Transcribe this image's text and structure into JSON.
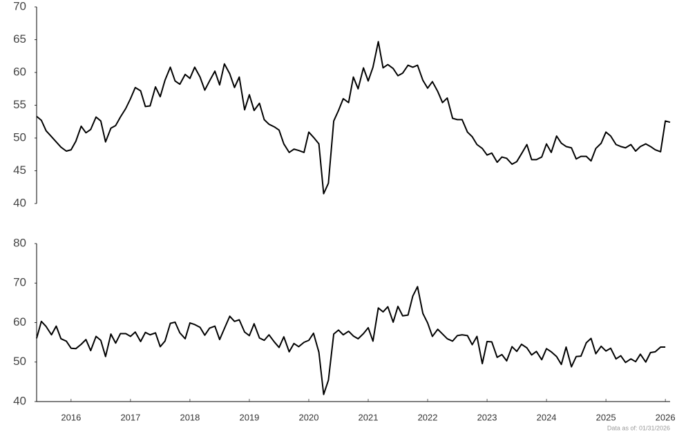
{
  "chart_data": [
    {
      "type": "line",
      "x": [
        2015.42,
        2015.5,
        2015.58,
        2015.67,
        2015.75,
        2015.83,
        2015.92,
        2016,
        2016.08,
        2016.17,
        2016.25,
        2016.33,
        2016.42,
        2016.5,
        2016.58,
        2016.67,
        2016.75,
        2016.83,
        2016.92,
        2017,
        2017.08,
        2017.17,
        2017.25,
        2017.33,
        2017.42,
        2017.5,
        2017.58,
        2017.67,
        2017.75,
        2017.83,
        2017.92,
        2018,
        2018.08,
        2018.17,
        2018.25,
        2018.33,
        2018.42,
        2018.5,
        2018.58,
        2018.67,
        2018.75,
        2018.83,
        2018.92,
        2019,
        2019.08,
        2019.17,
        2019.25,
        2019.33,
        2019.42,
        2019.5,
        2019.58,
        2019.67,
        2019.75,
        2019.83,
        2019.92,
        2020,
        2020.08,
        2020.17,
        2020.25,
        2020.33,
        2020.42,
        2020.5,
        2020.58,
        2020.67,
        2020.75,
        2020.83,
        2020.92,
        2021,
        2021.08,
        2021.17,
        2021.25,
        2021.33,
        2021.42,
        2021.5,
        2021.58,
        2021.67,
        2021.75,
        2021.83,
        2021.92,
        2022,
        2022.08,
        2022.17,
        2022.25,
        2022.33,
        2022.42,
        2022.5,
        2022.58,
        2022.67,
        2022.75,
        2022.83,
        2022.92,
        2023,
        2023.08,
        2023.17,
        2023.25,
        2023.33,
        2023.42,
        2023.5,
        2023.58,
        2023.67,
        2023.75,
        2023.83,
        2023.92,
        2024,
        2024.08,
        2024.17,
        2024.25,
        2024.33,
        2024.42,
        2024.5,
        2024.58,
        2024.67,
        2024.75,
        2024.83,
        2024.92,
        2025,
        2025.08,
        2025.17,
        2025.25,
        2025.33,
        2025.42,
        2025.5,
        2025.58,
        2025.67,
        2025.75,
        2025.83,
        2025.92,
        2026,
        2026.08
      ],
      "series": [
        {
          "color": "#000000",
          "values": [
            53.3,
            52.7,
            51.1,
            50.2,
            49.4,
            48.6,
            48.0,
            48.2,
            49.5,
            51.8,
            50.8,
            51.3,
            53.2,
            52.6,
            49.4,
            51.5,
            51.9,
            53.2,
            54.5,
            56.0,
            57.7,
            57.2,
            54.8,
            54.9,
            57.8,
            56.3,
            58.8,
            60.8,
            58.7,
            58.2,
            59.7,
            59.1,
            60.8,
            59.3,
            57.3,
            58.7,
            60.2,
            58.1,
            61.3,
            59.8,
            57.7,
            59.3,
            54.3,
            56.6,
            54.2,
            55.3,
            52.8,
            52.1,
            51.7,
            51.2,
            49.1,
            47.8,
            48.3,
            48.1,
            47.8,
            50.9,
            50.1,
            49.1,
            41.5,
            43.1,
            52.6,
            54.2,
            56.0,
            55.4,
            59.3,
            57.5,
            60.7,
            58.7,
            60.8,
            64.7,
            60.7,
            61.2,
            60.6,
            59.5,
            59.9,
            61.1,
            60.8,
            61.1,
            58.8,
            57.6,
            58.6,
            57.1,
            55.4,
            56.1,
            53.0,
            52.8,
            52.8,
            50.9,
            50.2,
            49.0,
            48.4,
            47.4,
            47.7,
            46.3,
            47.1,
            46.9,
            46.0,
            46.4,
            47.6,
            49.0,
            46.7,
            46.7,
            47.1,
            49.1,
            47.8,
            50.3,
            49.2,
            48.7,
            48.5,
            46.8,
            47.2,
            47.2,
            46.5,
            48.4,
            49.2,
            50.9,
            50.3,
            49.0,
            48.7,
            48.5,
            49.0,
            48.0,
            48.7,
            49.1,
            48.7,
            48.2,
            47.9,
            52.6,
            52.4
          ]
        }
      ],
      "xlim": [
        2015.42,
        2026.08
      ],
      "ylim": [
        40,
        70
      ],
      "yticks": [
        40,
        45,
        50,
        55,
        60,
        65,
        70
      ]
    },
    {
      "type": "line",
      "x": [
        2015.42,
        2015.5,
        2015.58,
        2015.67,
        2015.75,
        2015.83,
        2015.92,
        2016,
        2016.08,
        2016.17,
        2016.25,
        2016.33,
        2016.42,
        2016.5,
        2016.58,
        2016.67,
        2016.75,
        2016.83,
        2016.92,
        2017,
        2017.08,
        2017.17,
        2017.25,
        2017.33,
        2017.42,
        2017.5,
        2017.58,
        2017.67,
        2017.75,
        2017.83,
        2017.92,
        2018,
        2018.08,
        2018.17,
        2018.25,
        2018.33,
        2018.42,
        2018.5,
        2018.58,
        2018.67,
        2018.75,
        2018.83,
        2018.92,
        2019,
        2019.08,
        2019.17,
        2019.25,
        2019.33,
        2019.42,
        2019.5,
        2019.58,
        2019.67,
        2019.75,
        2019.83,
        2019.92,
        2020,
        2020.08,
        2020.17,
        2020.25,
        2020.33,
        2020.42,
        2020.5,
        2020.58,
        2020.67,
        2020.75,
        2020.83,
        2020.92,
        2021,
        2021.08,
        2021.17,
        2021.25,
        2021.33,
        2021.42,
        2021.5,
        2021.58,
        2021.67,
        2021.75,
        2021.83,
        2021.92,
        2022,
        2022.08,
        2022.17,
        2022.25,
        2022.33,
        2022.42,
        2022.5,
        2022.58,
        2022.67,
        2022.75,
        2022.83,
        2022.92,
        2023,
        2023.08,
        2023.17,
        2023.25,
        2023.33,
        2023.42,
        2023.5,
        2023.58,
        2023.67,
        2023.75,
        2023.83,
        2023.92,
        2024,
        2024.08,
        2024.17,
        2024.25,
        2024.33,
        2024.42,
        2024.5,
        2024.58,
        2024.67,
        2024.75,
        2024.83,
        2024.92,
        2025,
        2025.08,
        2025.17,
        2025.25,
        2025.33,
        2025.42,
        2025.5,
        2025.58,
        2025.67,
        2025.75,
        2025.83,
        2025.92,
        2026,
        2026.08
      ],
      "series": [
        {
          "color": "#000000",
          "values": [
            56.0,
            60.3,
            59.0,
            56.9,
            59.1,
            55.9,
            55.3,
            53.5,
            53.4,
            54.5,
            55.7,
            52.9,
            56.5,
            55.5,
            51.4,
            57.1,
            54.8,
            57.2,
            57.2,
            56.5,
            57.6,
            55.2,
            57.5,
            56.9,
            57.4,
            53.9,
            55.3,
            59.8,
            60.1,
            57.4,
            55.9,
            59.9,
            59.5,
            58.8,
            56.8,
            58.6,
            59.1,
            55.7,
            58.5,
            61.6,
            60.3,
            60.7,
            57.6,
            56.7,
            59.7,
            56.1,
            55.5,
            56.9,
            55.1,
            53.7,
            56.4,
            52.6,
            54.7,
            53.9,
            55.0,
            55.5,
            57.3,
            52.5,
            41.8,
            45.4,
            57.1,
            58.1,
            56.9,
            57.8,
            56.6,
            55.9,
            57.2,
            58.7,
            55.3,
            63.7,
            62.7,
            64.0,
            60.1,
            64.1,
            61.7,
            61.9,
            66.7,
            69.1,
            62.3,
            59.9,
            56.5,
            58.3,
            57.1,
            55.9,
            55.3,
            56.7,
            56.9,
            56.7,
            54.4,
            56.5,
            49.6,
            55.2,
            55.1,
            51.2,
            51.9,
            50.3,
            53.9,
            52.7,
            54.5,
            53.6,
            51.8,
            52.7,
            50.6,
            53.4,
            52.6,
            51.4,
            49.4,
            53.8,
            48.8,
            51.4,
            51.5,
            54.9,
            56.0,
            52.1,
            54.0,
            52.8,
            53.5,
            50.8,
            51.6,
            49.9,
            50.8,
            50.1,
            52.0,
            50.0,
            52.4,
            52.6,
            53.8,
            53.8,
            null
          ]
        }
      ],
      "xlim": [
        2015.42,
        2026.08
      ],
      "xticks": [
        2016,
        2017,
        2018,
        2019,
        2020,
        2021,
        2022,
        2023,
        2024,
        2025,
        2026
      ],
      "ylim": [
        40,
        80
      ],
      "yticks": [
        40,
        50,
        60,
        70,
        80
      ],
      "annotation": "Data as of: 01/31/2026"
    }
  ]
}
